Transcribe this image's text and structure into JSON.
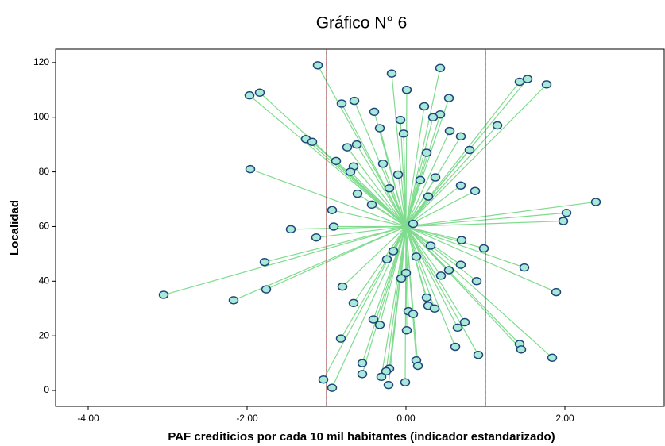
{
  "chart_data": {
    "type": "scatter",
    "title": "Gráfico N° 6",
    "x_label": "PAF crediticios por cada 10 mil habitantes (indicador estandarizado)",
    "y_label": "Localidad",
    "x": [
      -1.11,
      -0.18,
      0.01,
      0.43,
      -1.97,
      -1.84,
      -0.81,
      -0.65,
      -0.4,
      0.23,
      0.54,
      0.43,
      0.34,
      -0.07,
      -0.33,
      0.55,
      0.69,
      -0.03,
      1.43,
      1.53,
      1.77,
      1.15,
      0.8,
      0.26,
      -1.26,
      -1.18,
      -0.74,
      -0.62,
      -0.88,
      -0.66,
      -0.7,
      -0.29,
      -0.1,
      -1.96,
      0.37,
      0.18,
      0.69,
      0.87,
      -0.61,
      -0.21,
      0.28,
      -0.43,
      -0.93,
      2.39,
      2.02,
      1.98,
      0.09,
      -0.91,
      -1.45,
      -1.13,
      0.7,
      0.31,
      0.98,
      -0.16,
      0.13,
      -0.24,
      -1.78,
      0.69,
      1.49,
      0.54,
      0.0,
      0.44,
      -0.06,
      0.89,
      -0.8,
      -1.76,
      1.89,
      -3.05,
      0.26,
      -2.17,
      -0.66,
      0.28,
      0.36,
      0.03,
      0.09,
      -0.41,
      0.74,
      -0.33,
      0.65,
      0.01,
      -0.82,
      1.43,
      1.45,
      0.62,
      0.91,
      1.84,
      0.13,
      -0.55,
      0.15,
      -0.21,
      -0.25,
      -0.55,
      -0.31,
      -1.04,
      -0.01,
      -0.22,
      -0.93
    ],
    "y": [
      119,
      116,
      110,
      118,
      108,
      109,
      105,
      106,
      102,
      104,
      107,
      101,
      100,
      99,
      96,
      95,
      93,
      94,
      113,
      114,
      112,
      97,
      88,
      87,
      92,
      91,
      89,
      90,
      84,
      82,
      80,
      83,
      79,
      81,
      78,
      77,
      75,
      73,
      72,
      74,
      71,
      68,
      66,
      69,
      65,
      62,
      61,
      60,
      59,
      56,
      55,
      53,
      52,
      51,
      49,
      48,
      47,
      46,
      45,
      44,
      43,
      42,
      41,
      40,
      38,
      37,
      36,
      35,
      34,
      33,
      32,
      31,
      30,
      29,
      28,
      26,
      25,
      24,
      23,
      22,
      19,
      17,
      15,
      16,
      13,
      12,
      11,
      10,
      9,
      8,
      7,
      6,
      5,
      4,
      3,
      2,
      1
    ],
    "centroid": {
      "x": 0,
      "y": 60
    },
    "reference_lines": [
      -1,
      1
    ],
    "xlim": [
      -4.41,
      3.25
    ],
    "ylim": [
      -5.8,
      124.9
    ],
    "xticks": [
      {
        "value": -4,
        "label": "-4.00"
      },
      {
        "value": -2,
        "label": "-2.00"
      },
      {
        "value": 0,
        "label": "0.00"
      },
      {
        "value": 2,
        "label": "2.00"
      }
    ],
    "yticks": [
      0,
      20,
      40,
      60,
      80,
      100,
      120
    ],
    "point_color": "#a8ead9",
    "point_edge_color": "#1f4478",
    "line_color": "#7fdc8e",
    "reference_color": "#b02020"
  }
}
